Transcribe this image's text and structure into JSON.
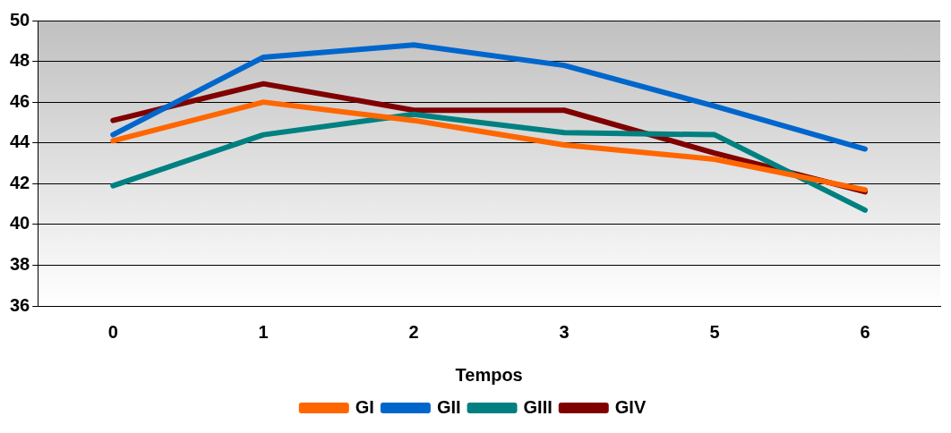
{
  "chart_data": {
    "type": "line",
    "xlabel": "Tempos",
    "categories": [
      "0",
      "1",
      "2",
      "3",
      "5",
      "6"
    ],
    "series": [
      {
        "name": "GI",
        "color": "#ff6600",
        "values": [
          44.1,
          46.0,
          45.1,
          43.9,
          43.2,
          41.7
        ]
      },
      {
        "name": "GII",
        "color": "#0066cc",
        "values": [
          44.4,
          48.2,
          48.8,
          47.8,
          45.8,
          43.7
        ]
      },
      {
        "name": "GIII",
        "color": "#008080",
        "values": [
          41.9,
          44.4,
          45.4,
          44.5,
          44.4,
          40.7
        ]
      },
      {
        "name": "GIV",
        "color": "#800000",
        "values": [
          45.1,
          46.9,
          45.6,
          45.6,
          43.5,
          41.6
        ]
      }
    ],
    "ylim": [
      36,
      50
    ],
    "yticks": [
      36,
      38,
      40,
      42,
      44,
      46,
      48,
      50
    ],
    "grid": "y",
    "legend": "bottom",
    "marker": "none",
    "line_style": "solid"
  }
}
